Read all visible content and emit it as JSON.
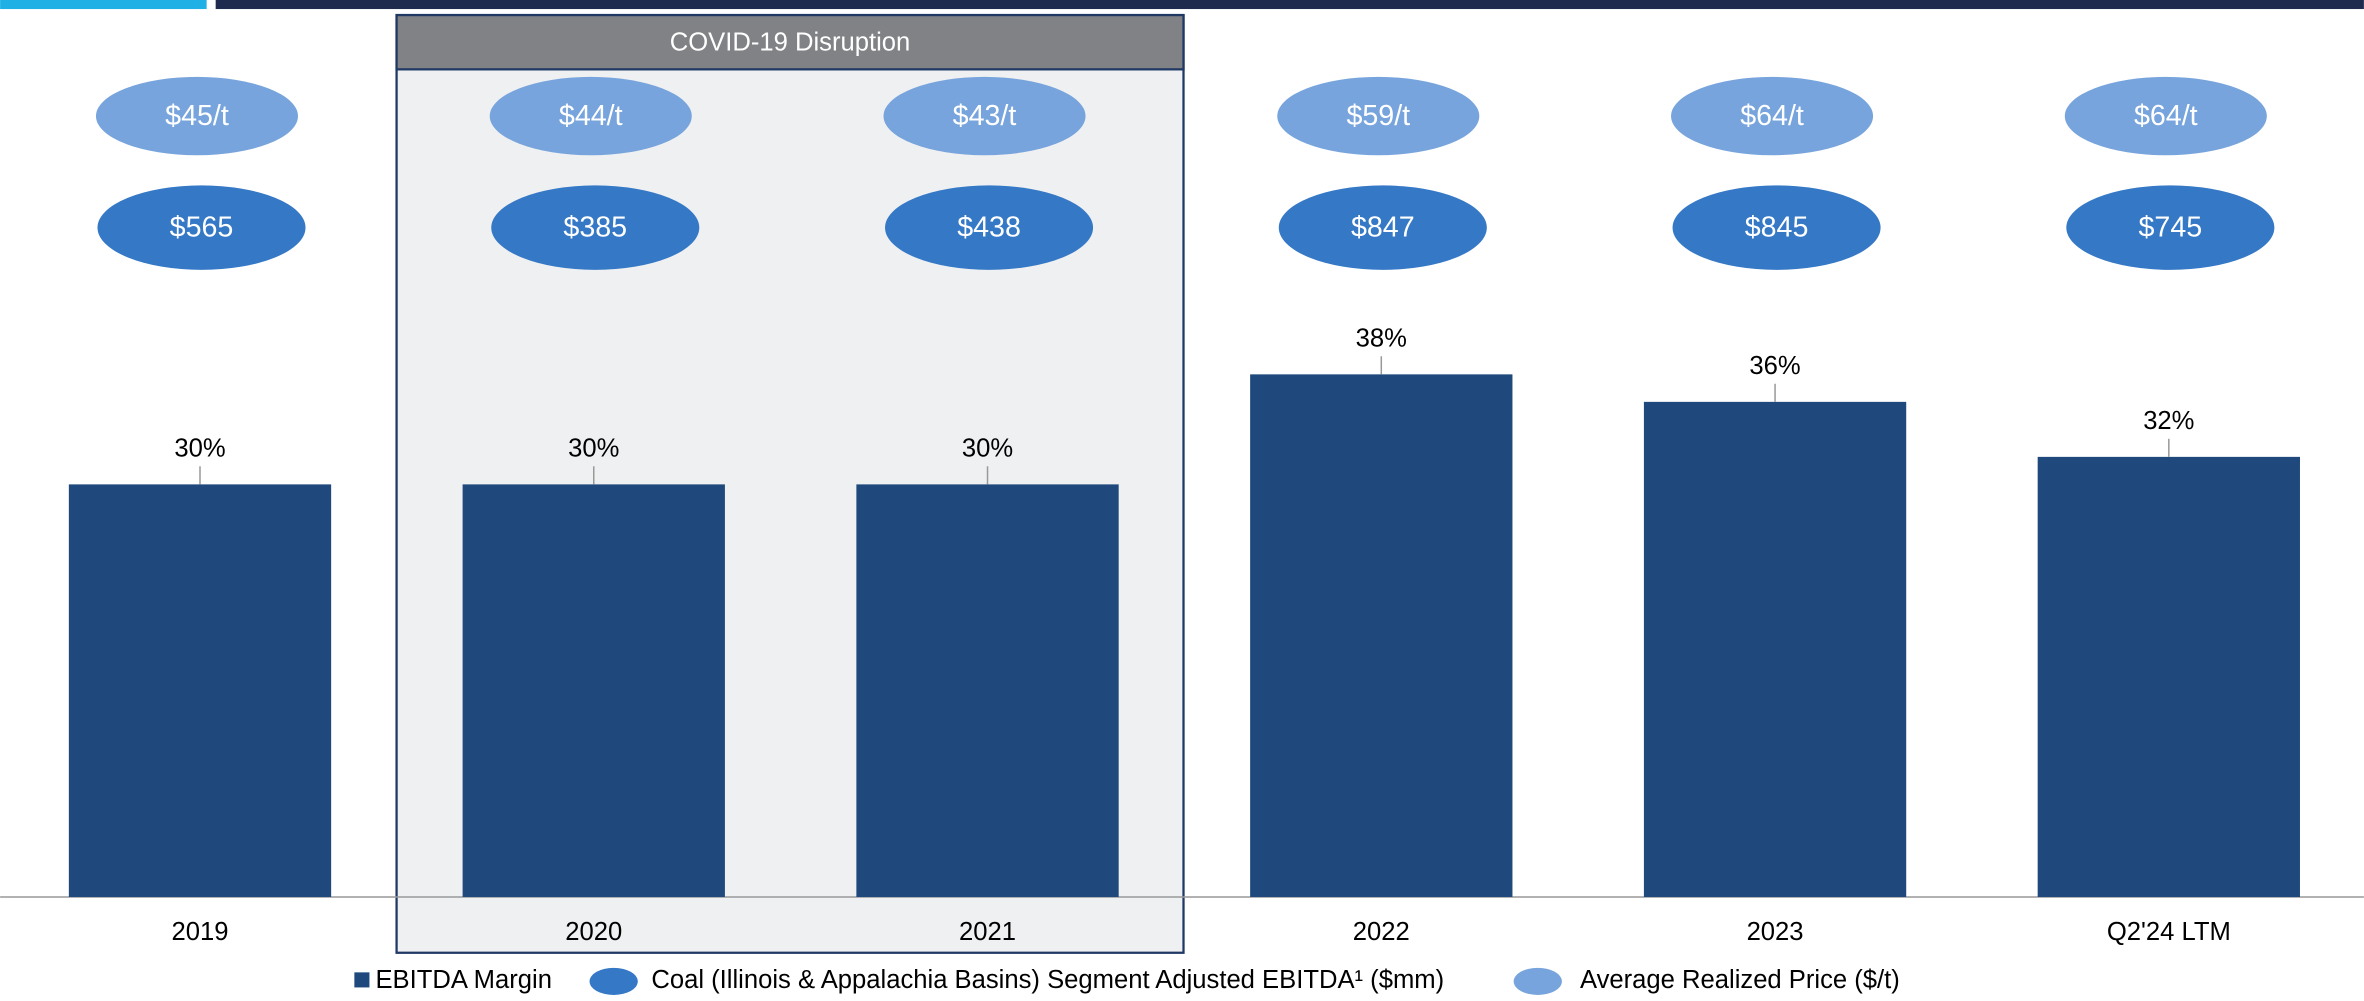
{
  "chart_data": {
    "type": "bar",
    "annotation": "COVID-19 Disruption",
    "categories": [
      "2019",
      "2020",
      "2021",
      "2022",
      "2023",
      "Q2'24 LTM"
    ],
    "ylim": [
      0,
      65
    ],
    "series": [
      {
        "name": "EBITDA Margin",
        "color": "#1f497d",
        "values": [
          30,
          30,
          30,
          38,
          36,
          32
        ],
        "value_labels": [
          "30%",
          "30%",
          "30%",
          "38%",
          "36%",
          "32%"
        ]
      },
      {
        "name": "Coal (Illinois & Appalachia Basins) Segment Adjusted EBITDA¹ ($mm)",
        "color": "#3478c6",
        "values": [
          565,
          385,
          438,
          847,
          845,
          745
        ],
        "value_labels": [
          "$565",
          "$385",
          "$438",
          "$847",
          "$845",
          "$745"
        ]
      },
      {
        "name": "Average Realized Price ($/t)",
        "color": "#77a4dc",
        "values": [
          45,
          44,
          43,
          59,
          64,
          64
        ],
        "value_labels": [
          "$45/t",
          "$44/t",
          "$43/t",
          "$59/t",
          "$64/t",
          "$64/t"
        ]
      }
    ]
  }
}
